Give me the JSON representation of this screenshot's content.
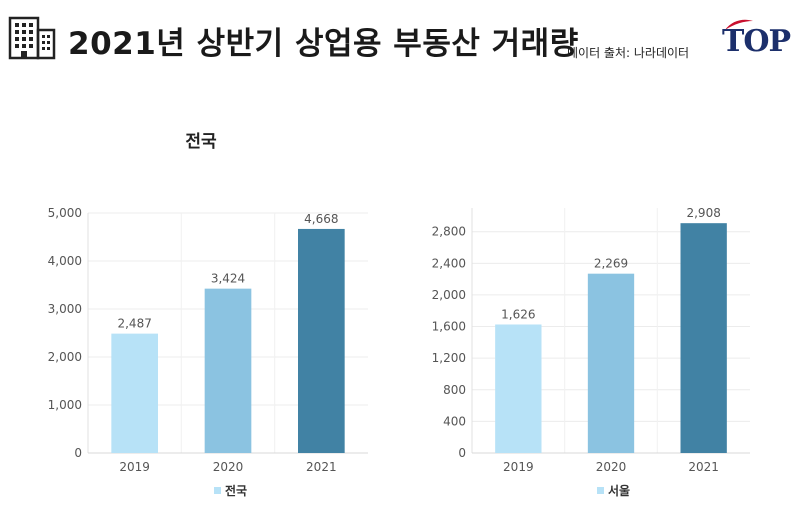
{
  "header": {
    "title": "2021년 상반기 상업용 부동산 거래량",
    "source": "데이터 출처: 나라데이터",
    "logo_text": "TOP",
    "icon": "building-icon"
  },
  "chart_data": [
    {
      "type": "bar",
      "title": "전국",
      "categories": [
        "2019",
        "2020",
        "2021"
      ],
      "series": [
        {
          "name": "전국",
          "values": [
            2487,
            3424,
            4668
          ]
        }
      ],
      "value_labels": [
        "2,487",
        "3,424",
        "4,668"
      ],
      "yticks": [
        "0",
        "1,000",
        "2,000",
        "3,000",
        "4,000",
        "5,000"
      ],
      "ytick_values": [
        0,
        1000,
        2000,
        3000,
        4000,
        5000
      ],
      "ylim": [
        0,
        5000
      ],
      "bar_colors": [
        "#b7e2f7",
        "#8bc3e1",
        "#4182a4"
      ],
      "legend_color": "#b7e2f7",
      "legend": "bottom",
      "grid": true
    },
    {
      "type": "bar",
      "title": "서울",
      "categories": [
        "2019",
        "2020",
        "2021"
      ],
      "series": [
        {
          "name": "서울",
          "values": [
            1626,
            2269,
            2908
          ]
        }
      ],
      "value_labels": [
        "1,626",
        "2,269",
        "2,908"
      ],
      "yticks": [
        "0",
        "400",
        "800",
        "1,200",
        "1,600",
        "2,000",
        "2,400",
        "2,800"
      ],
      "ytick_values": [
        0,
        400,
        800,
        1200,
        1600,
        2000,
        2400,
        2800
      ],
      "ylim": [
        0,
        3100
      ],
      "bar_colors": [
        "#b7e2f7",
        "#8bc3e1",
        "#4182a4"
      ],
      "legend_color": "#b7e2f7",
      "legend": "bottom",
      "grid": true
    }
  ]
}
